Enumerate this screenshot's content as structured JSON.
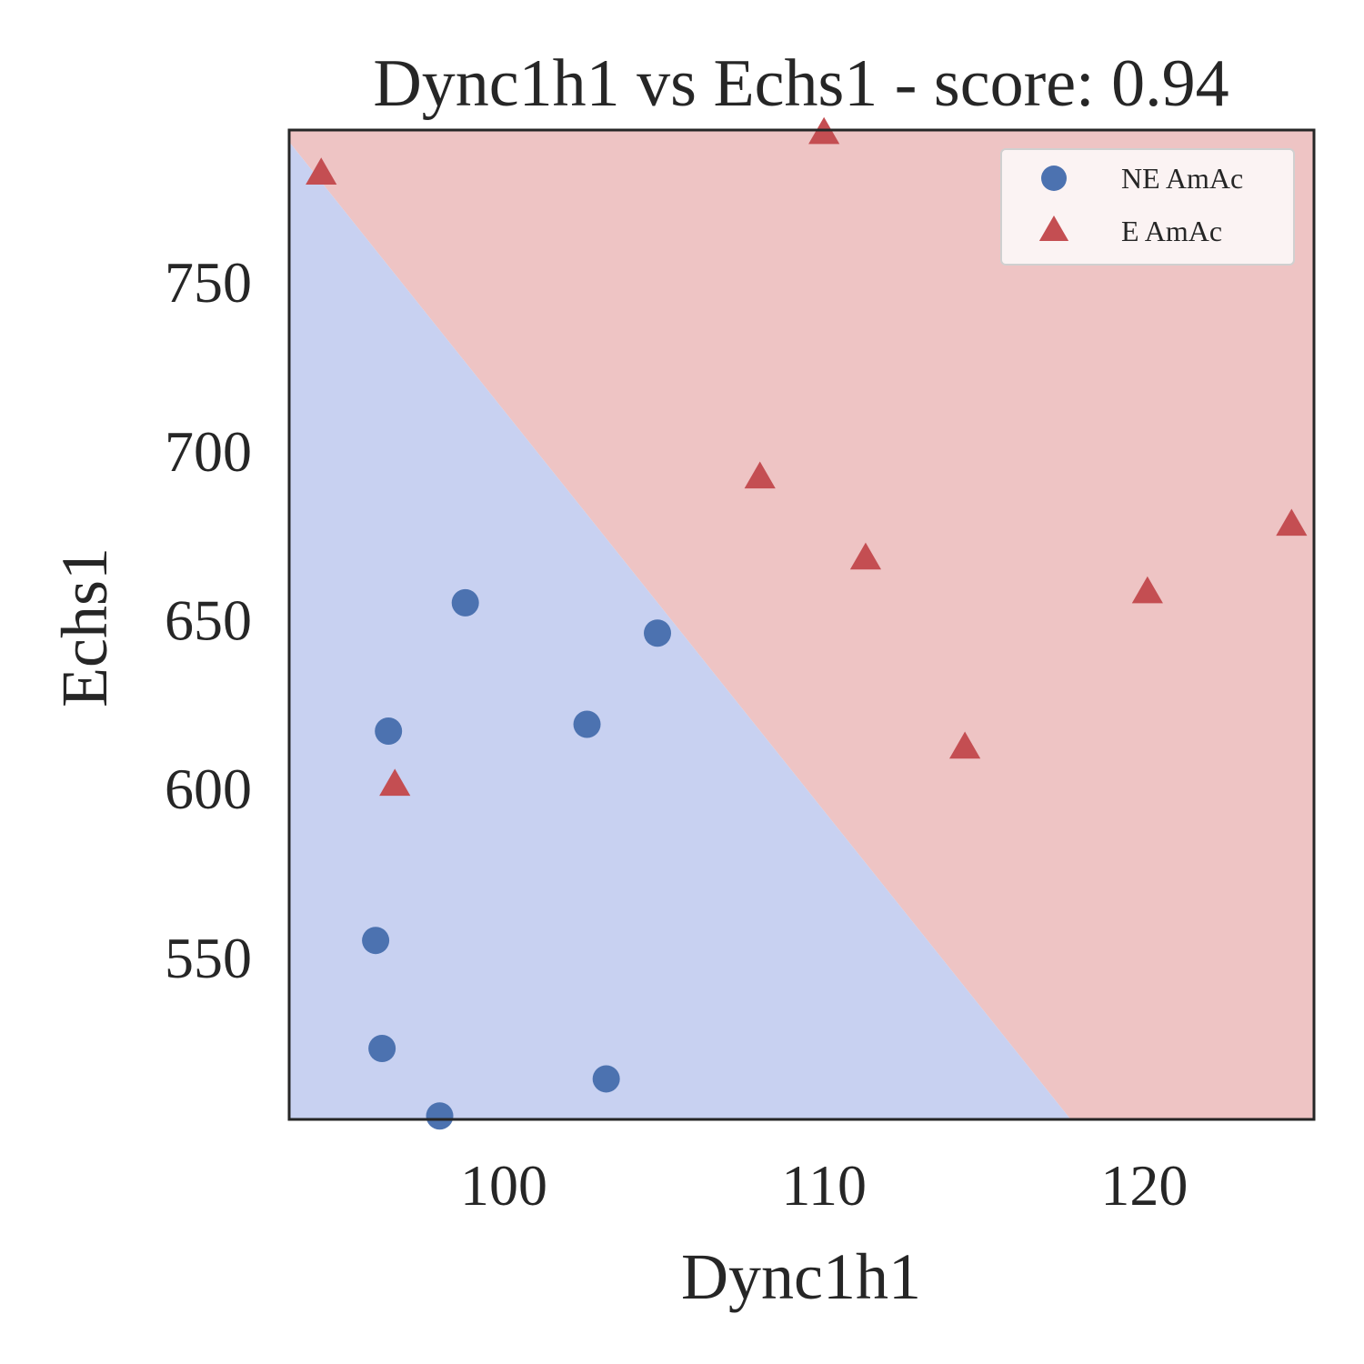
{
  "chart_data": {
    "type": "scatter",
    "title": "Dync1h1 vs Echs1 - score: 0.94",
    "xlabel": "Dync1h1",
    "ylabel": "Echs1",
    "xlim": [
      93.3,
      125.3
    ],
    "ylim": [
      502,
      795
    ],
    "xticks": [
      100,
      110,
      120
    ],
    "yticks": [
      550,
      600,
      650,
      700,
      750
    ],
    "grid": false,
    "legend_position": "top-right",
    "decision_boundary": {
      "points": [
        [
          93.3,
          791.5
        ],
        [
          117.7,
          502
        ]
      ]
    },
    "regions": [
      {
        "name": "NE AmAc",
        "color": "#c8d1f1"
      },
      {
        "name": "E AmAc",
        "color": "#eec4c4"
      }
    ],
    "series": [
      {
        "name": "NE AmAc",
        "marker": "circle",
        "color": "#4c72b0",
        "points": [
          [
            98.8,
            655
          ],
          [
            104.8,
            646
          ],
          [
            96.4,
            617
          ],
          [
            102.6,
            619
          ],
          [
            96.0,
            555
          ],
          [
            96.2,
            523
          ],
          [
            103.2,
            514
          ],
          [
            98.0,
            503
          ]
        ]
      },
      {
        "name": "E AmAc",
        "marker": "triangle",
        "color": "#c44e52",
        "points": [
          [
            94.3,
            782
          ],
          [
            110.0,
            794
          ],
          [
            108.0,
            692
          ],
          [
            111.3,
            668
          ],
          [
            96.6,
            601
          ],
          [
            114.4,
            612
          ],
          [
            120.1,
            658
          ],
          [
            124.6,
            678
          ]
        ]
      }
    ]
  }
}
